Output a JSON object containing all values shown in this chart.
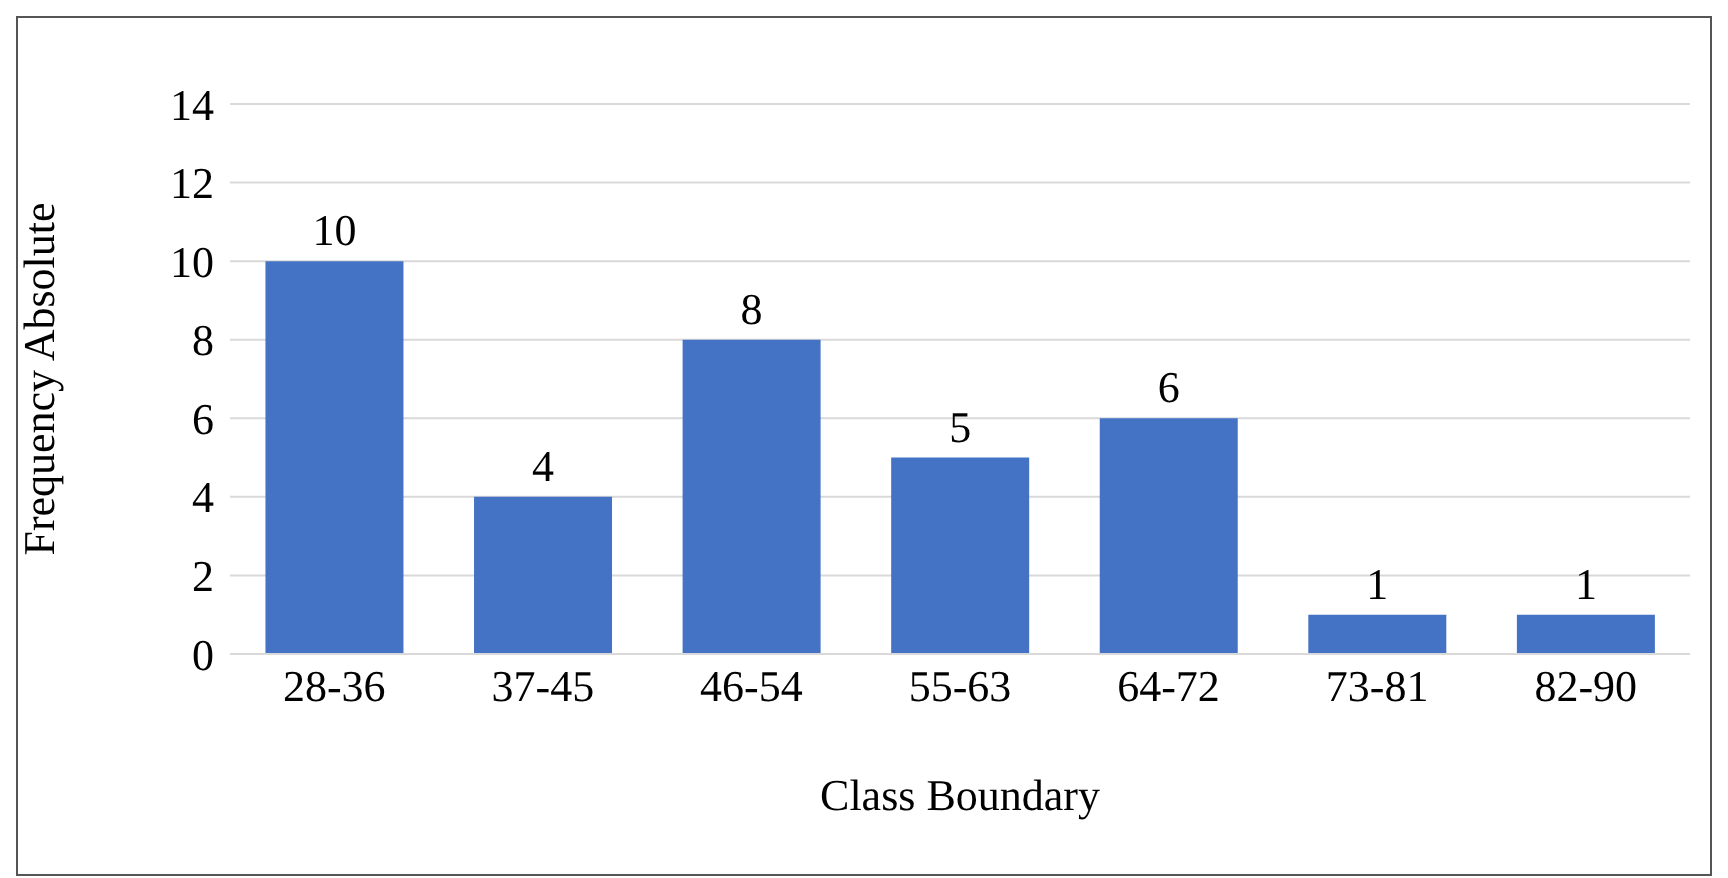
{
  "chart_data": {
    "type": "bar",
    "xlabel": "Class Boundary",
    "ylabel": "Frequency Absolute",
    "categories": [
      "28-36",
      "37-45",
      "46-54",
      "55-63",
      "64-72",
      "73-81",
      "82-90"
    ],
    "values": [
      10,
      4,
      8,
      5,
      6,
      1,
      1
    ],
    "color": "#4472c4",
    "ylim": [
      0,
      14
    ],
    "yticks": [
      0,
      2,
      4,
      6,
      8,
      10,
      12,
      14
    ],
    "grid": "y",
    "data_labels": true,
    "legend": false
  }
}
